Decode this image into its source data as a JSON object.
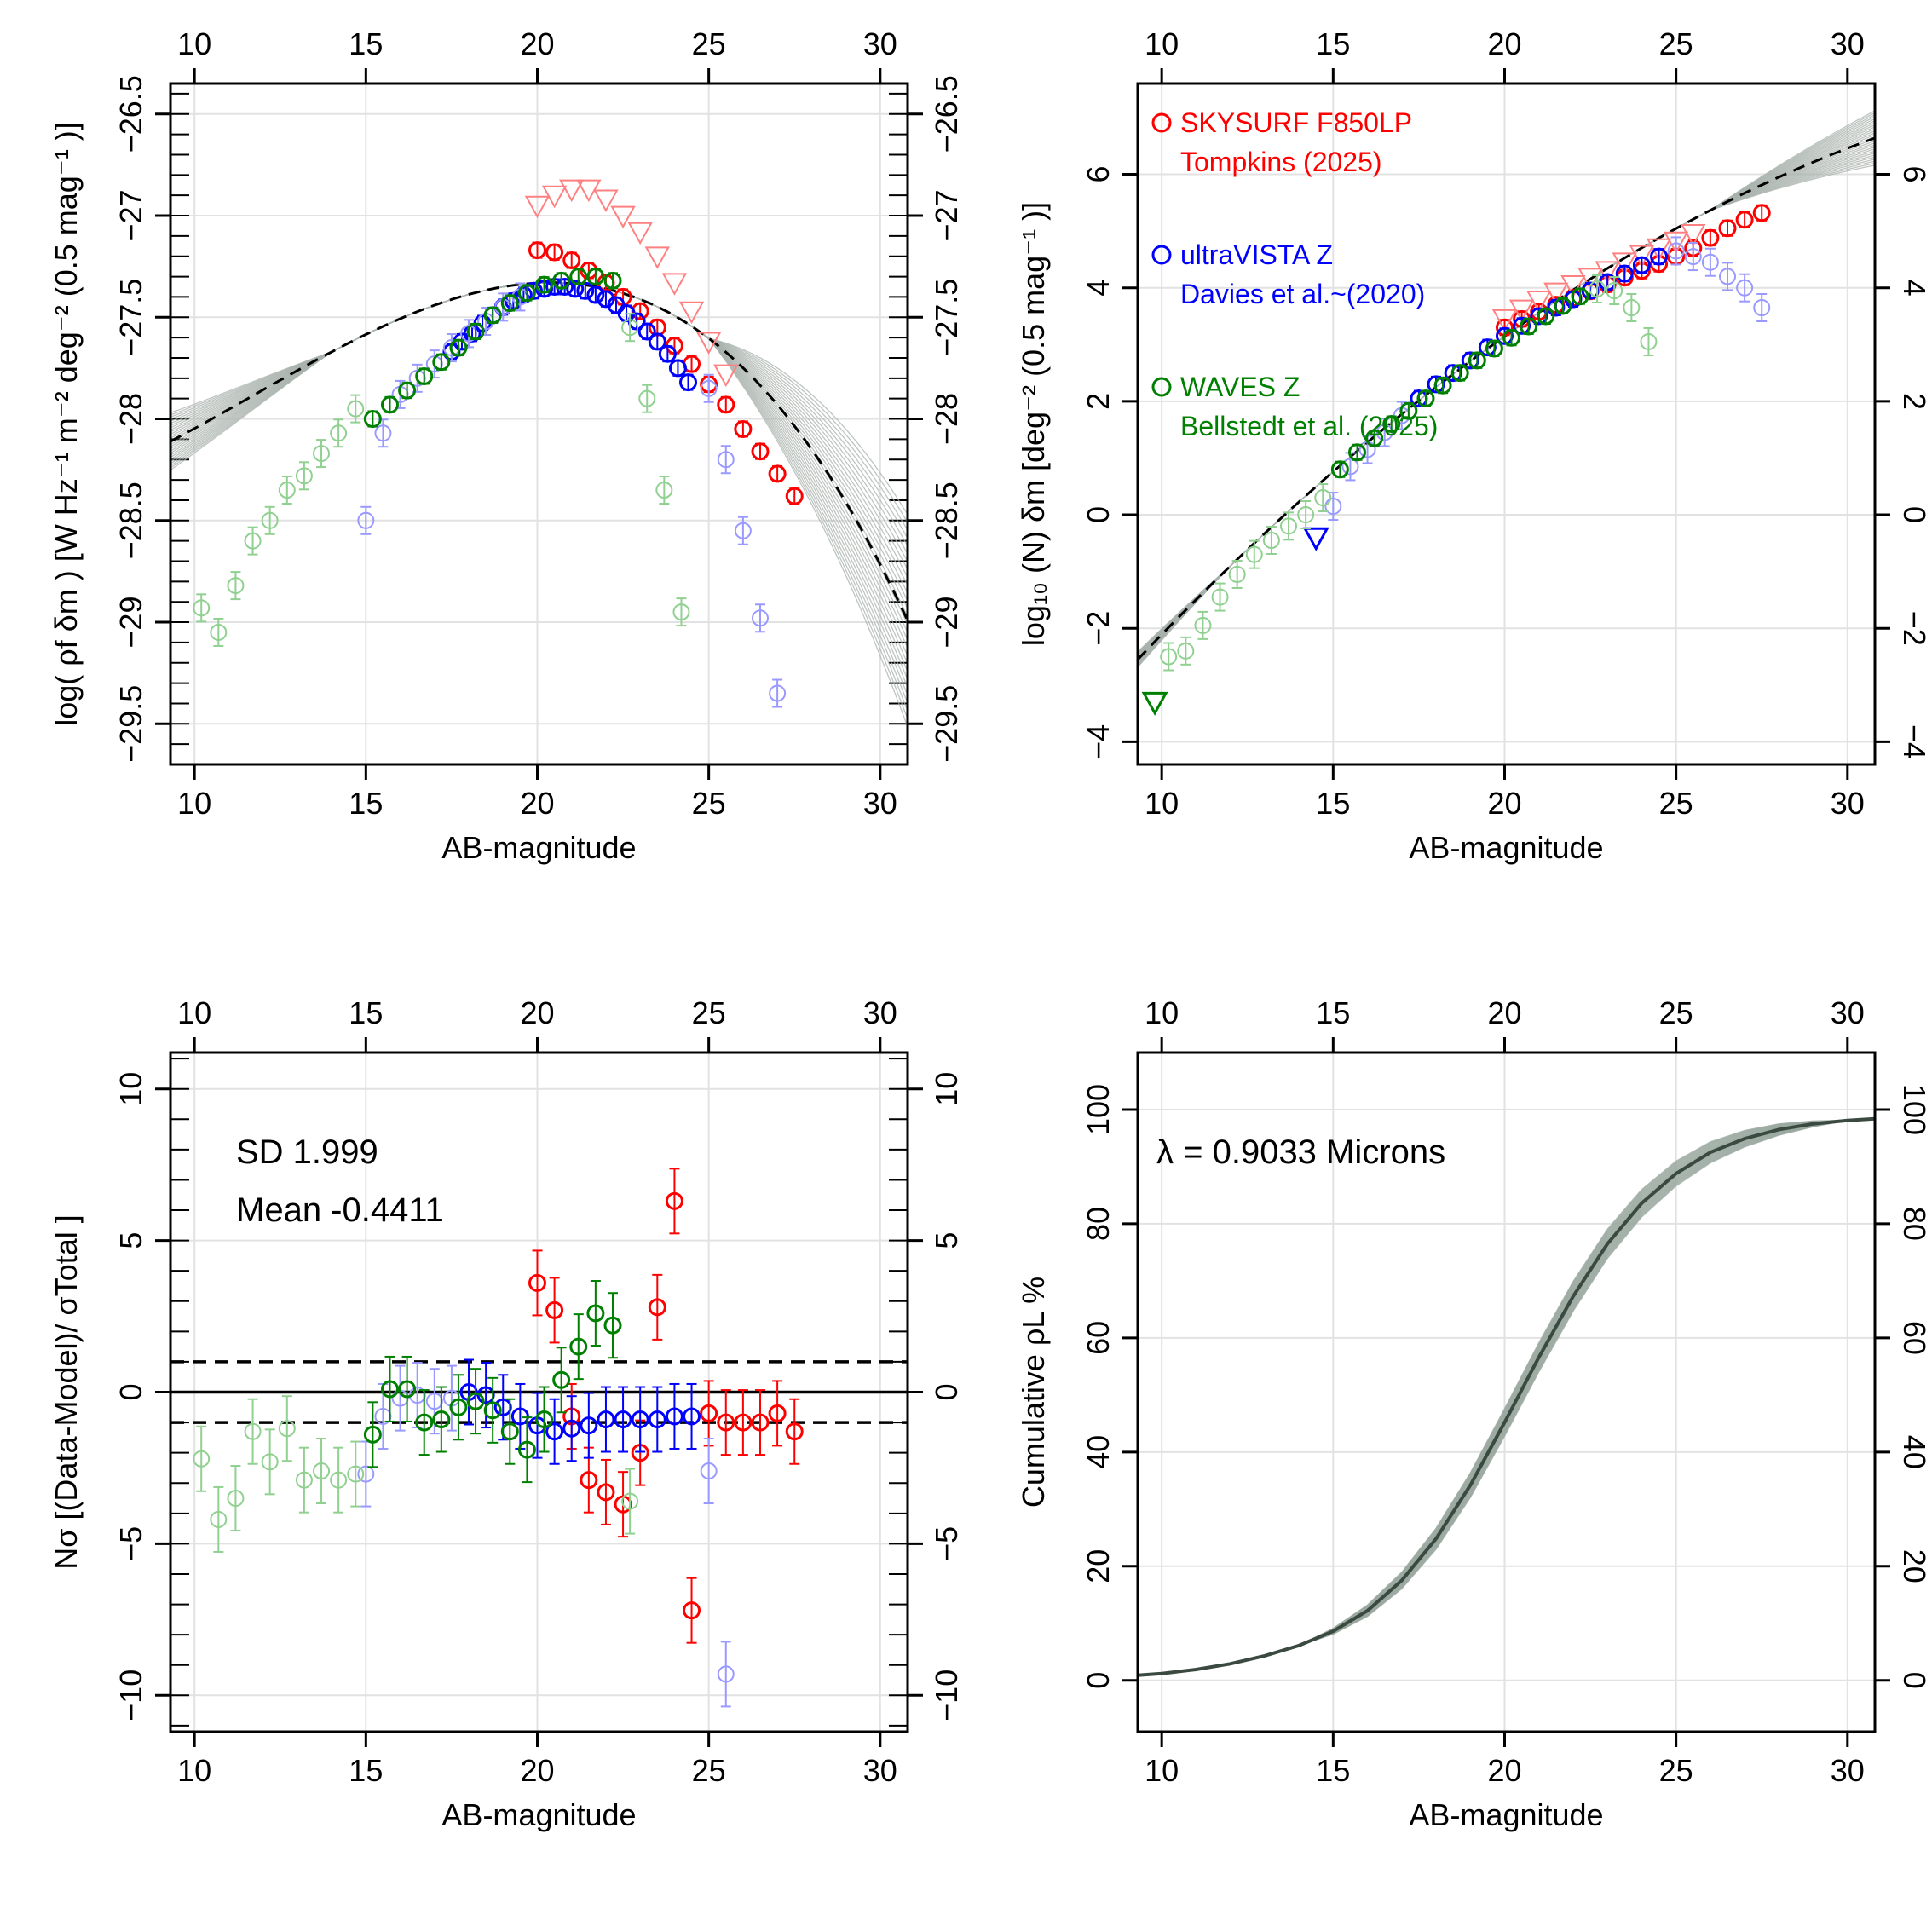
{
  "chart_data": [
    {
      "id": "p1",
      "type": "scatter",
      "xlabel": "AB-magnitude",
      "ylabel": "log( ρf δm ) [W Hz⁻¹ m⁻² deg⁻² (0.5 mag⁻¹ )]",
      "xlim": [
        9.3,
        30.8
      ],
      "ylim": [
        -29.7,
        -26.35
      ],
      "xticks": [
        10,
        15,
        20,
        25,
        30
      ],
      "yticks": [
        -29.5,
        -29,
        -28.5,
        -28,
        -27.5,
        -27,
        -26.5
      ],
      "grid": true,
      "colors": {
        "red": "#ff0000",
        "blue": "#0000ff",
        "green": "#008000",
        "faint_red": "#ff8080",
        "faint_blue": "#9999ff",
        "faint_green": "#90d090",
        "model": "#3a4a40"
      },
      "series": [
        {
          "color": "red",
          "marker": "circle",
          "x": [
            20.0,
            20.5,
            21.0,
            21.5,
            22.0,
            22.5,
            23.0,
            23.5,
            24.0,
            24.5,
            25.0,
            25.5,
            26.0,
            26.5,
            27.0,
            27.5
          ],
          "y": [
            -27.17,
            -27.18,
            -27.22,
            -27.27,
            -27.33,
            -27.4,
            -27.47,
            -27.55,
            -27.64,
            -27.73,
            -27.83,
            -27.93,
            -28.05,
            -28.16,
            -28.27,
            -28.38
          ]
        },
        {
          "color": "faint_red",
          "marker": "triangle",
          "x": [
            20.0,
            20.5,
            21.0,
            21.5,
            22.0,
            22.5,
            23.0,
            23.5,
            24.0,
            24.5,
            25.0,
            25.5
          ],
          "y": [
            -26.95,
            -26.9,
            -26.87,
            -26.87,
            -26.92,
            -27.0,
            -27.08,
            -27.2,
            -27.33,
            -27.47,
            -27.62,
            -27.78
          ]
        },
        {
          "color": "blue",
          "marker": "circle",
          "x": [
            17.5,
            17.8,
            18.1,
            18.4,
            18.7,
            19.0,
            19.3,
            19.6,
            19.9,
            20.2,
            20.5,
            20.8,
            21.1,
            21.4,
            21.7,
            22.0,
            22.3,
            22.6,
            22.9,
            23.2,
            23.5,
            23.8,
            24.1,
            24.4
          ],
          "y": [
            -27.67,
            -27.62,
            -27.58,
            -27.53,
            -27.49,
            -27.45,
            -27.42,
            -27.39,
            -27.37,
            -27.36,
            -27.35,
            -27.35,
            -27.36,
            -27.37,
            -27.39,
            -27.41,
            -27.44,
            -27.48,
            -27.52,
            -27.57,
            -27.62,
            -27.68,
            -27.75,
            -27.82
          ]
        },
        {
          "color": "faint_blue",
          "marker": "circle",
          "x": [
            15.0,
            15.5,
            16.0,
            16.5,
            17.0,
            17.5,
            18.0,
            18.5,
            19.0,
            19.5,
            25.0,
            25.5,
            26.0,
            26.5,
            27.0
          ],
          "y": [
            -28.5,
            -28.07,
            -27.88,
            -27.8,
            -27.73,
            -27.65,
            -27.58,
            -27.52,
            -27.45,
            -27.4,
            -27.85,
            -28.2,
            -28.55,
            -28.98,
            -29.35
          ]
        },
        {
          "color": "green",
          "marker": "circle",
          "x": [
            15.2,
            15.7,
            16.2,
            16.7,
            17.2,
            17.7,
            18.2,
            18.7,
            19.2,
            19.7,
            20.2,
            20.7,
            21.2,
            21.7,
            22.2
          ],
          "y": [
            -28.0,
            -27.93,
            -27.86,
            -27.79,
            -27.72,
            -27.65,
            -27.57,
            -27.49,
            -27.43,
            -27.38,
            -27.34,
            -27.32,
            -27.3,
            -27.3,
            -27.32
          ]
        },
        {
          "color": "faint_green",
          "marker": "circle",
          "x": [
            10.2,
            10.7,
            11.2,
            11.7,
            12.2,
            12.7,
            13.2,
            13.7,
            14.2,
            14.7,
            22.7,
            23.2,
            23.7,
            24.2
          ],
          "y": [
            -28.93,
            -29.05,
            -28.82,
            -28.6,
            -28.5,
            -28.35,
            -28.28,
            -28.17,
            -28.07,
            -27.95,
            -27.55,
            -27.9,
            -28.35,
            -28.95
          ]
        }
      ]
    },
    {
      "id": "p2",
      "type": "scatter",
      "xlabel": "AB-magnitude",
      "ylabel": "log₁₀ (N) δm [deg⁻² (0.5 mag⁻¹ )]",
      "xlim": [
        9.3,
        30.8
      ],
      "ylim": [
        -4.4,
        7.6
      ],
      "xticks": [
        10,
        15,
        20,
        25,
        30
      ],
      "yticks": [
        -4,
        -2,
        0,
        2,
        4,
        6
      ],
      "grid": true,
      "legend": {
        "position": "top-left",
        "entries": [
          {
            "color": "red",
            "label": "SKYSURF F850LP",
            "sub": "Tompkins (2025)"
          },
          {
            "color": "blue",
            "label": "ultraVISTA Z",
            "sub": "Davies et al.~(2020)"
          },
          {
            "color": "green",
            "label": "WAVES Z",
            "sub": "Bellstedt et al. (2025)"
          }
        ]
      },
      "series": [
        {
          "color": "red",
          "marker": "circle",
          "x": [
            20.0,
            20.5,
            21.0,
            21.5,
            22.0,
            22.5,
            23.0,
            23.5,
            24.0,
            24.5,
            25.0,
            25.5,
            26.0,
            26.5,
            27.0,
            27.5
          ],
          "y": [
            3.3,
            3.45,
            3.58,
            3.7,
            3.82,
            3.94,
            4.06,
            4.18,
            4.3,
            4.42,
            4.55,
            4.7,
            4.88,
            5.05,
            5.2,
            5.32
          ]
        },
        {
          "color": "faint_red",
          "marker": "triangle",
          "x": [
            20.0,
            20.5,
            21.0,
            21.5,
            22.0,
            22.5,
            23.0,
            23.5,
            24.0,
            24.5,
            25.0,
            25.5
          ],
          "y": [
            3.45,
            3.62,
            3.78,
            3.92,
            4.05,
            4.18,
            4.3,
            4.45,
            4.58,
            4.7,
            4.82,
            4.95
          ]
        },
        {
          "color": "blue",
          "marker": "circle",
          "x": [
            17.5,
            18.0,
            18.5,
            19.0,
            19.5,
            20.0,
            20.5,
            21.0,
            21.5,
            22.0,
            22.5,
            23.0,
            23.5,
            24.0,
            24.5
          ],
          "y": [
            2.05,
            2.3,
            2.5,
            2.72,
            2.95,
            3.15,
            3.33,
            3.5,
            3.65,
            3.8,
            3.95,
            4.1,
            4.25,
            4.4,
            4.55
          ]
        },
        {
          "color": "blue",
          "marker": "triangle",
          "x": [
            14.5
          ],
          "y": [
            -0.4
          ]
        },
        {
          "color": "faint_blue",
          "marker": "circle",
          "x": [
            15.0,
            15.5,
            16.0,
            16.5,
            17.0,
            25.0,
            25.5,
            26.0,
            26.5,
            27.0,
            27.5
          ],
          "y": [
            0.15,
            0.85,
            1.15,
            1.45,
            1.75,
            4.65,
            4.55,
            4.45,
            4.2,
            4.0,
            3.65
          ]
        },
        {
          "color": "green",
          "marker": "circle",
          "x": [
            15.2,
            15.7,
            16.2,
            16.7,
            17.2,
            17.7,
            18.2,
            18.7,
            19.2,
            19.7,
            20.2,
            20.7,
            21.2,
            21.7,
            22.2
          ],
          "y": [
            0.8,
            1.1,
            1.35,
            1.6,
            1.83,
            2.05,
            2.28,
            2.5,
            2.72,
            2.93,
            3.12,
            3.32,
            3.5,
            3.68,
            3.85
          ]
        },
        {
          "color": "green",
          "marker": "triangle",
          "x": [
            9.8
          ],
          "y": [
            -3.3
          ]
        },
        {
          "color": "faint_green",
          "marker": "circle",
          "x": [
            10.2,
            10.7,
            11.2,
            11.7,
            12.2,
            12.7,
            13.2,
            13.7,
            14.2,
            14.7,
            22.7,
            23.2,
            23.7,
            24.2
          ],
          "y": [
            -2.5,
            -2.4,
            -1.95,
            -1.45,
            -1.05,
            -0.7,
            -0.45,
            -0.2,
            0.0,
            0.3,
            3.98,
            3.95,
            3.65,
            3.05
          ]
        }
      ]
    },
    {
      "id": "p3",
      "type": "scatter",
      "xlabel": "AB-magnitude",
      "ylabel": "Nσ [(Data-Model)/ σTotal ]",
      "xlim": [
        9.3,
        30.8
      ],
      "ylim": [
        -11.2,
        11.2
      ],
      "xticks": [
        10,
        15,
        20,
        25,
        30
      ],
      "yticks": [
        -10,
        -5,
        0,
        5,
        10
      ],
      "grid": true,
      "annotations": [
        "SD 1.999",
        "Mean -0.4411"
      ],
      "series": [
        {
          "color": "red",
          "marker": "circle",
          "x": [
            20.0,
            20.5,
            21.0,
            21.5,
            22.0,
            22.5,
            23.0,
            23.5,
            24.0,
            24.5,
            25.0,
            25.5,
            26.0,
            26.5,
            27.0,
            27.5
          ],
          "y": [
            3.6,
            2.7,
            -0.8,
            -2.9,
            -3.3,
            -3.7,
            -2.0,
            2.8,
            6.3,
            -7.2,
            -0.7,
            -1.0,
            -1.0,
            -1.0,
            -0.7,
            -1.3
          ]
        },
        {
          "color": "blue",
          "marker": "circle",
          "x": [
            18.0,
            18.5,
            19.0,
            19.5,
            20.0,
            20.5,
            21.0,
            21.5,
            22.0,
            22.5,
            23.0,
            23.5,
            24.0,
            24.5
          ],
          "y": [
            0.0,
            -0.1,
            -0.5,
            -0.8,
            -1.1,
            -1.3,
            -1.2,
            -1.1,
            -0.9,
            -0.9,
            -0.9,
            -0.9,
            -0.8,
            -0.8
          ]
        },
        {
          "color": "faint_blue",
          "marker": "circle",
          "x": [
            15.0,
            15.5,
            16.0,
            16.5,
            17.0,
            17.5,
            25.0,
            25.5
          ],
          "y": [
            -2.7,
            -0.8,
            -0.2,
            -0.1,
            -0.3,
            -0.2,
            -2.6,
            -9.3
          ]
        },
        {
          "color": "green",
          "marker": "circle",
          "x": [
            15.2,
            15.7,
            16.2,
            16.7,
            17.2,
            17.7,
            18.2,
            18.7,
            19.2,
            19.7,
            20.2,
            20.7,
            21.2,
            21.7,
            22.2
          ],
          "y": [
            -1.4,
            0.1,
            0.1,
            -1.0,
            -0.9,
            -0.5,
            -0.3,
            -0.6,
            -1.3,
            -1.9,
            -0.9,
            0.4,
            1.5,
            2.6,
            2.2
          ]
        },
        {
          "color": "faint_green",
          "marker": "circle",
          "x": [
            10.2,
            10.7,
            11.2,
            11.7,
            12.2,
            12.7,
            13.2,
            13.7,
            14.2,
            14.7,
            22.7
          ],
          "y": [
            -2.2,
            -4.2,
            -3.5,
            -1.3,
            -2.3,
            -1.2,
            -2.9,
            -2.6,
            -2.9,
            -2.7,
            -3.6
          ]
        }
      ]
    },
    {
      "id": "p4",
      "type": "line",
      "xlabel": "AB-magnitude",
      "ylabel": "Cumulative ρL %",
      "xlim": [
        9.3,
        30.8
      ],
      "ylim": [
        -9,
        110
      ],
      "xticks": [
        10,
        15,
        20,
        25,
        30
      ],
      "yticks": [
        0,
        20,
        40,
        60,
        80,
        100
      ],
      "grid": true,
      "annotation": "λ = 0.9033 Microns",
      "series": [
        {
          "color": "model",
          "x": [
            9.3,
            10,
            11,
            12,
            13,
            14,
            15,
            16,
            17,
            18,
            19,
            20,
            21,
            22,
            23,
            24,
            25,
            26,
            27,
            28,
            29,
            30,
            30.8
          ],
          "y": [
            0.9,
            1.2,
            1.9,
            2.9,
            4.3,
            6.1,
            8.6,
            12.2,
            17.5,
            24.8,
            34.2,
            45.2,
            56.6,
            67.3,
            76.5,
            83.6,
            88.8,
            92.5,
            94.9,
            96.5,
            97.5,
            98.1,
            98.4
          ]
        }
      ]
    }
  ]
}
